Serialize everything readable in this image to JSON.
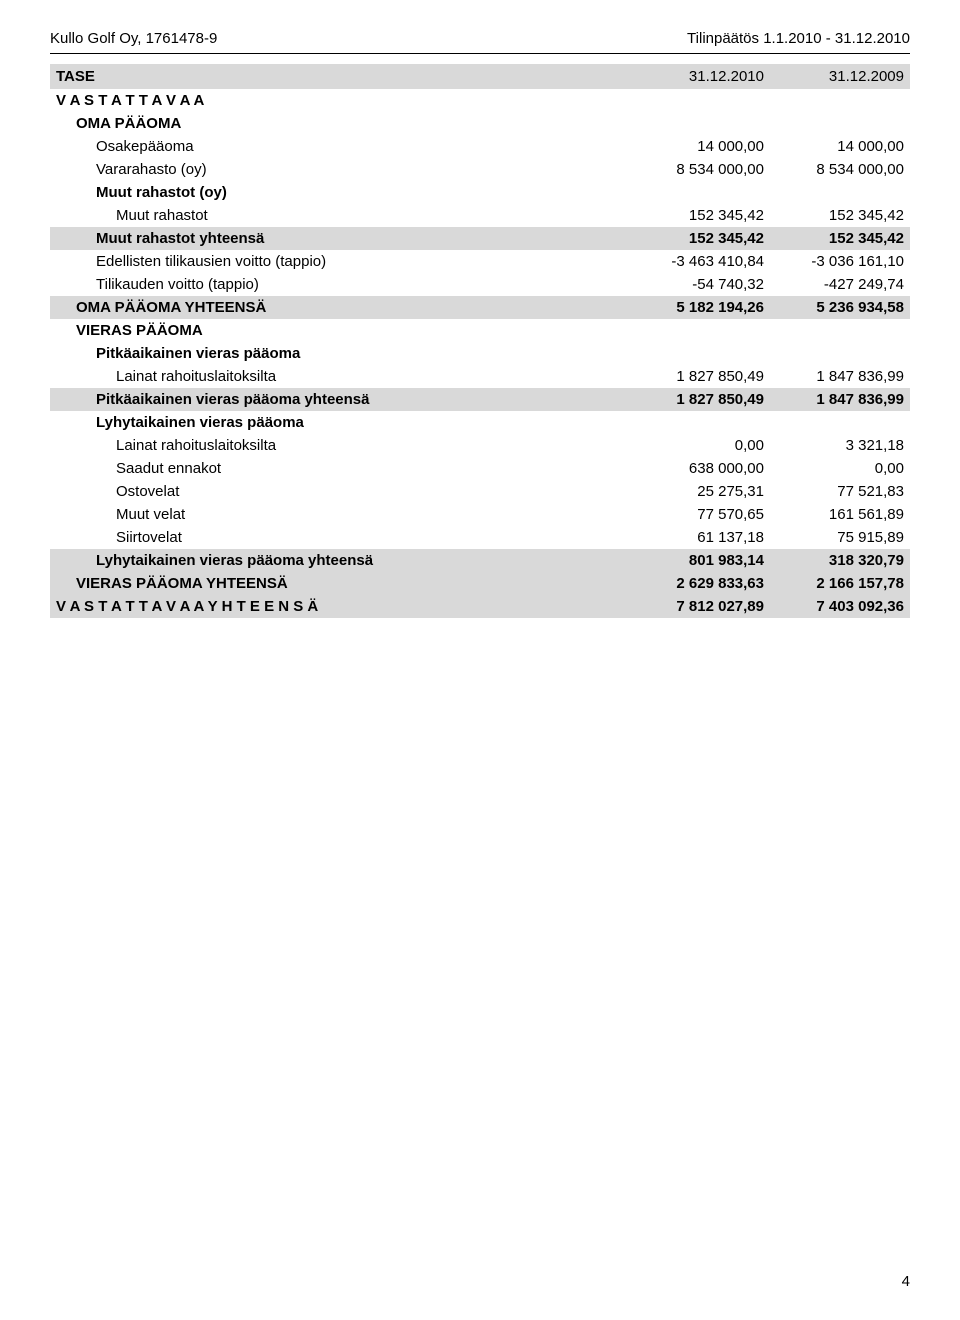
{
  "header": {
    "left": "Kullo Golf Oy, 1761478-9",
    "right": "Tilinpäätös 1.1.2010 - 31.12.2010"
  },
  "title": {
    "label": "TASE",
    "col1": "31.12.2010",
    "col2": "31.12.2009"
  },
  "rows": [
    {
      "indent": 0,
      "bold": true,
      "shaded": false,
      "label": "V A S T A T T A V A A",
      "col1": "",
      "col2": ""
    },
    {
      "indent": 1,
      "bold": true,
      "shaded": false,
      "label": "OMA PÄÄOMA",
      "col1": "",
      "col2": ""
    },
    {
      "indent": 2,
      "bold": false,
      "shaded": false,
      "label": "Osakepääoma",
      "col1": "14 000,00",
      "col2": "14 000,00"
    },
    {
      "indent": 2,
      "bold": false,
      "shaded": false,
      "label": "Vararahasto (oy)",
      "col1": "8 534 000,00",
      "col2": "8 534 000,00"
    },
    {
      "indent": 2,
      "bold": true,
      "shaded": false,
      "label": "Muut rahastot (oy)",
      "col1": "",
      "col2": ""
    },
    {
      "indent": 3,
      "bold": false,
      "shaded": false,
      "label": "Muut rahastot",
      "col1": "152 345,42",
      "col2": "152 345,42"
    },
    {
      "indent": 2,
      "bold": true,
      "shaded": true,
      "label": "Muut rahastot yhteensä",
      "col1": "152 345,42",
      "col2": "152 345,42"
    },
    {
      "indent": 2,
      "bold": false,
      "shaded": false,
      "label": "Edellisten tilikausien voitto (tappio)",
      "col1": "-3 463 410,84",
      "col2": "-3 036 161,10"
    },
    {
      "indent": 2,
      "bold": false,
      "shaded": false,
      "label": "Tilikauden voitto (tappio)",
      "col1": "-54 740,32",
      "col2": "-427 249,74"
    },
    {
      "indent": 1,
      "bold": true,
      "shaded": true,
      "label": "OMA PÄÄOMA YHTEENSÄ",
      "col1": "5 182 194,26",
      "col2": "5 236 934,58"
    },
    {
      "indent": 1,
      "bold": true,
      "shaded": false,
      "label": "VIERAS PÄÄOMA",
      "col1": "",
      "col2": ""
    },
    {
      "indent": 2,
      "bold": true,
      "shaded": false,
      "label": "Pitkäaikainen vieras pääoma",
      "col1": "",
      "col2": ""
    },
    {
      "indent": 3,
      "bold": false,
      "shaded": false,
      "label": "Lainat  rahoituslaitoksilta",
      "col1": "1 827 850,49",
      "col2": "1 847 836,99"
    },
    {
      "indent": 2,
      "bold": true,
      "shaded": true,
      "label": "Pitkäaikainen vieras pääoma yhteensä",
      "col1": "1 827 850,49",
      "col2": "1 847 836,99"
    },
    {
      "indent": 2,
      "bold": true,
      "shaded": false,
      "label": "Lyhytaikainen vieras pääoma",
      "col1": "",
      "col2": ""
    },
    {
      "indent": 3,
      "bold": false,
      "shaded": false,
      "label": "Lainat rahoituslaitoksilta",
      "col1": "0,00",
      "col2": "3 321,18"
    },
    {
      "indent": 3,
      "bold": false,
      "shaded": false,
      "label": "Saadut ennakot",
      "col1": "638 000,00",
      "col2": "0,00"
    },
    {
      "indent": 3,
      "bold": false,
      "shaded": false,
      "label": "Ostovelat",
      "col1": "25 275,31",
      "col2": "77 521,83"
    },
    {
      "indent": 3,
      "bold": false,
      "shaded": false,
      "label": "Muut velat",
      "col1": "77 570,65",
      "col2": "161 561,89"
    },
    {
      "indent": 3,
      "bold": false,
      "shaded": false,
      "label": "Siirtovelat",
      "col1": "61 137,18",
      "col2": "75 915,89"
    },
    {
      "indent": 2,
      "bold": true,
      "shaded": true,
      "label": "Lyhytaikainen vieras pääoma yhteensä",
      "col1": "801 983,14",
      "col2": "318 320,79"
    },
    {
      "indent": 1,
      "bold": true,
      "shaded": true,
      "label": "VIERAS PÄÄOMA YHTEENSÄ",
      "col1": "2 629 833,63",
      "col2": "2 166 157,78"
    },
    {
      "indent": 0,
      "bold": true,
      "shaded": true,
      "label": "V A S T A T T A V A A    Y H T E E N S Ä",
      "col1": "7 812 027,89",
      "col2": "7 403 092,36"
    }
  ],
  "page_number": "4",
  "colors": {
    "shade": "#d9d9d9",
    "text": "#000000",
    "background": "#ffffff"
  },
  "typography": {
    "font_family": "Arial",
    "base_size_pt": 11
  }
}
